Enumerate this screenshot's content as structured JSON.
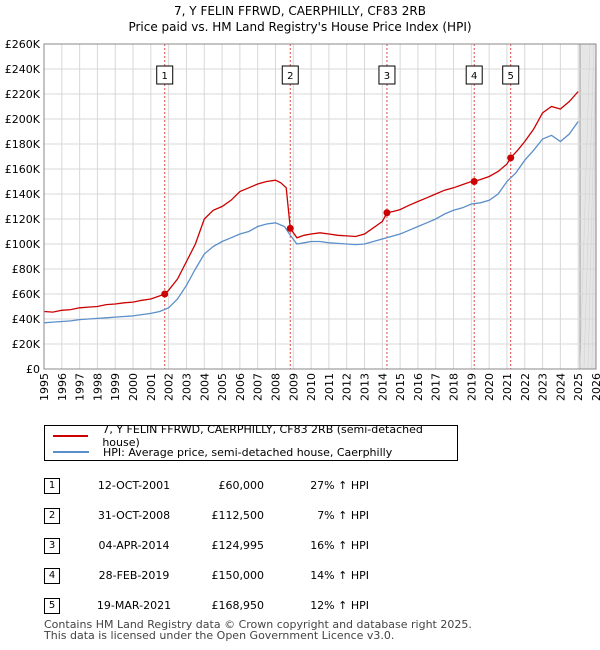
{
  "chart_data": {
    "type": "line",
    "title": "7, Y FELIN FFRWD, CAERPHILLY, CF83 2RB",
    "subtitle": "Price paid vs. HM Land Registry's House Price Index (HPI)",
    "xlabel": "",
    "ylabel": "",
    "xlim": [
      1995,
      2026
    ],
    "ylim": [
      0,
      260000
    ],
    "yticks": [
      0,
      20000,
      40000,
      60000,
      80000,
      100000,
      120000,
      140000,
      160000,
      180000,
      200000,
      220000,
      240000,
      260000
    ],
    "ytick_labels": [
      "£0",
      "£20K",
      "£40K",
      "£60K",
      "£80K",
      "£100K",
      "£120K",
      "£140K",
      "£160K",
      "£180K",
      "£200K",
      "£220K",
      "£240K",
      "£260K"
    ],
    "xticks": [
      "1995",
      "1996",
      "1997",
      "1998",
      "1999",
      "2000",
      "2001",
      "2002",
      "2003",
      "2004",
      "2005",
      "2006",
      "2007",
      "2008",
      "2009",
      "2010",
      "2011",
      "2012",
      "2013",
      "2014",
      "2015",
      "2016",
      "2017",
      "2018",
      "2019",
      "2020",
      "2021",
      "2022",
      "2023",
      "2024",
      "2025",
      "2026"
    ],
    "grid": true,
    "future_shade_from": 2025.1,
    "series": [
      {
        "name": "7, Y FELIN FFRWD, CAERPHILLY, CF83 2RB (semi-detached house)",
        "color": "#cc0000",
        "x": [
          1995.0,
          1995.5,
          1996.0,
          1996.5,
          1997.0,
          1997.5,
          1998.0,
          1998.5,
          1999.0,
          1999.5,
          2000.0,
          2000.5,
          2001.0,
          2001.5,
          2001.78,
          2002.0,
          2002.5,
          2003.0,
          2003.5,
          2004.0,
          2004.5,
          2005.0,
          2005.5,
          2006.0,
          2006.5,
          2007.0,
          2007.5,
          2008.0,
          2008.3,
          2008.6,
          2008.83,
          2009.2,
          2009.6,
          2010.0,
          2010.5,
          2011.0,
          2011.5,
          2012.0,
          2012.5,
          2013.0,
          2013.5,
          2014.0,
          2014.26,
          2014.6,
          2015.0,
          2015.5,
          2016.0,
          2016.5,
          2017.0,
          2017.5,
          2018.0,
          2018.5,
          2019.0,
          2019.16,
          2019.6,
          2020.0,
          2020.5,
          2021.0,
          2021.21,
          2021.6,
          2022.0,
          2022.5,
          2023.0,
          2023.5,
          2024.0,
          2024.5,
          2025.0
        ],
        "values": [
          46000,
          45500,
          47000,
          47500,
          49000,
          49500,
          50000,
          51500,
          52000,
          53000,
          53500,
          55000,
          56000,
          58500,
          60000,
          63000,
          72000,
          86000,
          100000,
          120000,
          127000,
          130000,
          135000,
          142000,
          145000,
          148000,
          150000,
          151000,
          149000,
          145000,
          112500,
          105000,
          107000,
          108000,
          109000,
          108000,
          107000,
          106500,
          106000,
          108000,
          113000,
          118000,
          124995,
          126000,
          127500,
          131000,
          134000,
          137000,
          140000,
          143000,
          145000,
          147500,
          150000,
          150000,
          152000,
          154000,
          158000,
          164000,
          168950,
          175000,
          182000,
          192000,
          205000,
          210000,
          208000,
          214000,
          222000
        ]
      },
      {
        "name": "HPI: Average price, semi-detached house, Caerphilly",
        "color": "#5b8fc9",
        "x": [
          1995.0,
          1995.5,
          1996.0,
          1996.5,
          1997.0,
          1997.5,
          1998.0,
          1998.5,
          1999.0,
          1999.5,
          2000.0,
          2000.5,
          2001.0,
          2001.5,
          2002.0,
          2002.5,
          2003.0,
          2003.5,
          2004.0,
          2004.5,
          2005.0,
          2005.5,
          2006.0,
          2006.5,
          2007.0,
          2007.5,
          2008.0,
          2008.5,
          2008.83,
          2009.2,
          2009.6,
          2010.0,
          2010.5,
          2011.0,
          2011.5,
          2012.0,
          2012.5,
          2013.0,
          2013.5,
          2014.0,
          2014.5,
          2015.0,
          2015.5,
          2016.0,
          2016.5,
          2017.0,
          2017.5,
          2018.0,
          2018.5,
          2019.0,
          2019.5,
          2020.0,
          2020.5,
          2021.0,
          2021.5,
          2022.0,
          2022.5,
          2023.0,
          2023.5,
          2024.0,
          2024.5,
          2025.0
        ],
        "values": [
          37000,
          37500,
          38000,
          38500,
          39500,
          40000,
          40500,
          41000,
          41500,
          42000,
          42500,
          43500,
          44500,
          46000,
          49000,
          56000,
          67000,
          80000,
          92000,
          98000,
          102000,
          105000,
          108000,
          110000,
          114000,
          116000,
          117000,
          114000,
          107000,
          100000,
          101000,
          102000,
          102000,
          101000,
          100500,
          100000,
          99500,
          100000,
          102000,
          104000,
          106000,
          108000,
          111000,
          114000,
          117000,
          120000,
          124000,
          127000,
          129000,
          132000,
          133000,
          135000,
          140000,
          150000,
          157000,
          167000,
          175000,
          184000,
          187000,
          182000,
          188000,
          198000
        ]
      }
    ],
    "sales": [
      {
        "num": "1",
        "year": 2001.78,
        "price": 60000
      },
      {
        "num": "2",
        "year": 2008.83,
        "price": 112500
      },
      {
        "num": "3",
        "year": 2014.26,
        "price": 124995
      },
      {
        "num": "4",
        "year": 2019.16,
        "price": 150000
      },
      {
        "num": "5",
        "year": 2021.21,
        "price": 168950
      }
    ],
    "sale_color": "#cc0000",
    "hpi_color": "#5b8fc9"
  },
  "legend": {
    "property_label": "7, Y FELIN FFRWD, CAERPHILLY, CF83 2RB (semi-detached house)",
    "hpi_label": "HPI: Average price, semi-detached house, Caerphilly"
  },
  "table": [
    {
      "num": "1",
      "date": "12-OCT-2001",
      "price": "£60,000",
      "hpi": "27% ↑ HPI"
    },
    {
      "num": "2",
      "date": "31-OCT-2008",
      "price": "£112,500",
      "hpi": "7% ↑ HPI"
    },
    {
      "num": "3",
      "date": "04-APR-2014",
      "price": "£124,995",
      "hpi": "16% ↑ HPI"
    },
    {
      "num": "4",
      "date": "28-FEB-2019",
      "price": "£150,000",
      "hpi": "14% ↑ HPI"
    },
    {
      "num": "5",
      "date": "19-MAR-2021",
      "price": "£168,950",
      "hpi": "12% ↑ HPI"
    }
  ],
  "footer": {
    "line1": "Contains HM Land Registry data © Crown copyright and database right 2025.",
    "line2": "This data is licensed under the Open Government Licence v3.0."
  }
}
